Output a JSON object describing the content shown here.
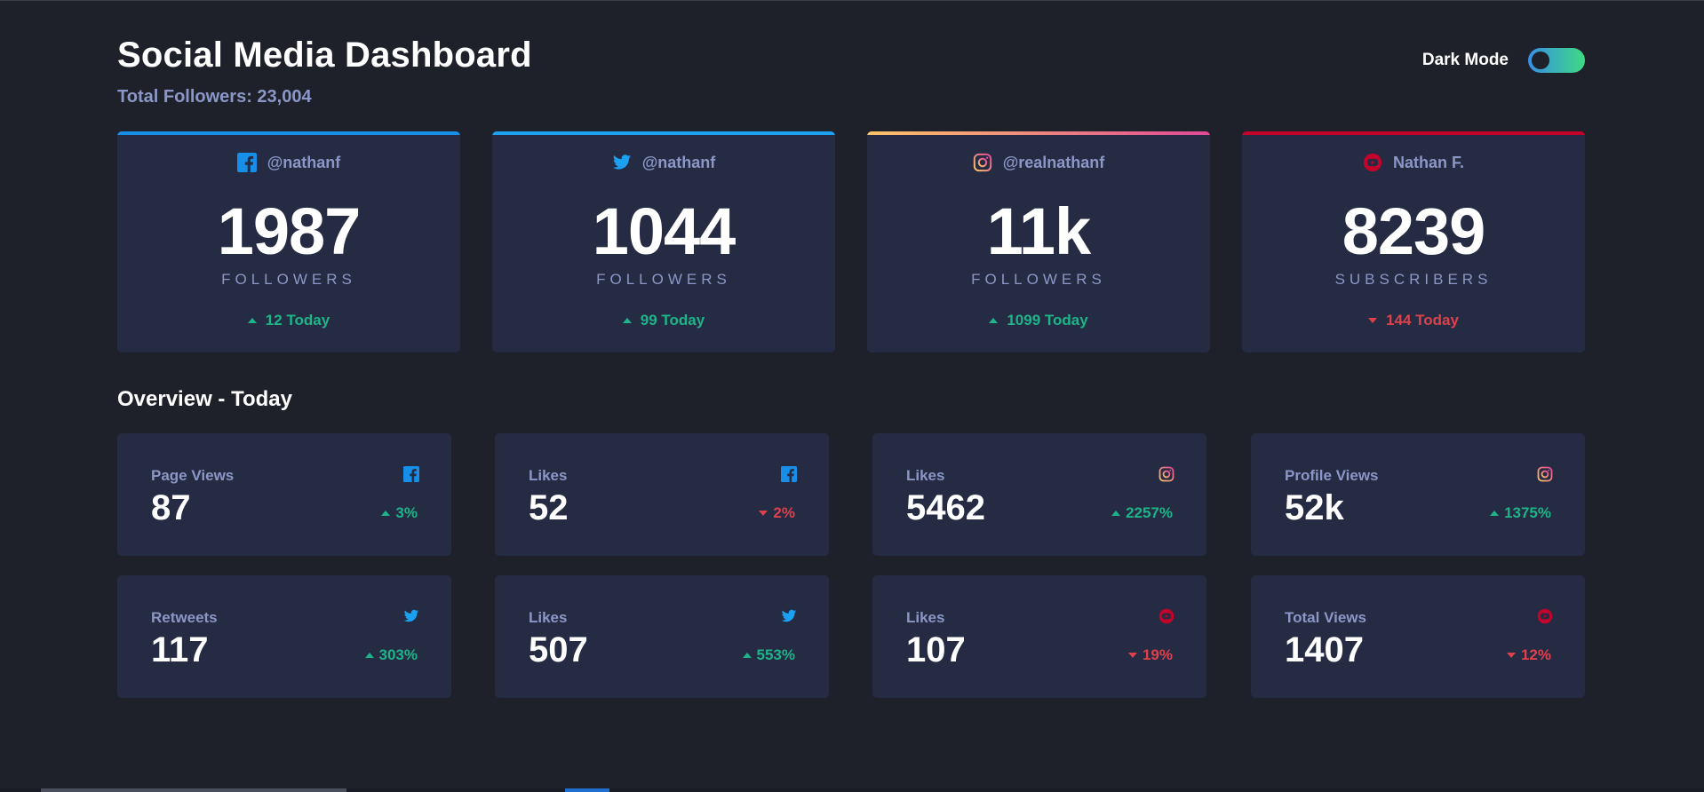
{
  "header": {
    "title": "Social Media Dashboard",
    "total_label": "Total Followers: ",
    "total_value": "23,004",
    "mode_label": "Dark Mode",
    "dark_mode_on": true
  },
  "colors": {
    "background": "#1e202a",
    "card": "#252b43",
    "muted_text": "#8b97c6",
    "up": "#1db489",
    "down": "#dc414c",
    "facebook": "#178fe9",
    "twitter": "#1ca0f2",
    "instagram_start": "#fdc468",
    "instagram_end": "#df4996",
    "youtube": "#c4032a"
  },
  "cards": [
    {
      "platform": "facebook",
      "icon": "facebook-icon",
      "handle": "@nathanf",
      "count": "1987",
      "unit": "FOLLOWERS",
      "today": "12 Today",
      "trend": "up"
    },
    {
      "platform": "twitter",
      "icon": "twitter-icon",
      "handle": "@nathanf",
      "count": "1044",
      "unit": "FOLLOWERS",
      "today": "99 Today",
      "trend": "up"
    },
    {
      "platform": "instagram",
      "icon": "instagram-icon",
      "handle": "@realnathanf",
      "count": "11k",
      "unit": "FOLLOWERS",
      "today": "1099 Today",
      "trend": "up"
    },
    {
      "platform": "youtube",
      "icon": "youtube-icon",
      "handle": "Nathan F.",
      "count": "8239",
      "unit": "SUBSCRIBERS",
      "today": "144 Today",
      "trend": "down"
    }
  ],
  "overview": {
    "title": "Overview - Today",
    "tiles": [
      {
        "label": "Page Views",
        "platform": "facebook",
        "icon": "facebook-icon",
        "value": "87",
        "pct": "3%",
        "trend": "up"
      },
      {
        "label": "Likes",
        "platform": "facebook",
        "icon": "facebook-icon",
        "value": "52",
        "pct": "2%",
        "trend": "down"
      },
      {
        "label": "Likes",
        "platform": "instagram",
        "icon": "instagram-icon",
        "value": "5462",
        "pct": "2257%",
        "trend": "up"
      },
      {
        "label": "Profile Views",
        "platform": "instagram",
        "icon": "instagram-icon",
        "value": "52k",
        "pct": "1375%",
        "trend": "up"
      },
      {
        "label": "Retweets",
        "platform": "twitter",
        "icon": "twitter-icon",
        "value": "117",
        "pct": "303%",
        "trend": "up"
      },
      {
        "label": "Likes",
        "platform": "twitter",
        "icon": "twitter-icon",
        "value": "507",
        "pct": "553%",
        "trend": "up"
      },
      {
        "label": "Likes",
        "platform": "youtube",
        "icon": "youtube-icon",
        "value": "107",
        "pct": "19%",
        "trend": "down"
      },
      {
        "label": "Total Views",
        "platform": "youtube",
        "icon": "youtube-icon",
        "value": "1407",
        "pct": "12%",
        "trend": "down"
      }
    ]
  }
}
